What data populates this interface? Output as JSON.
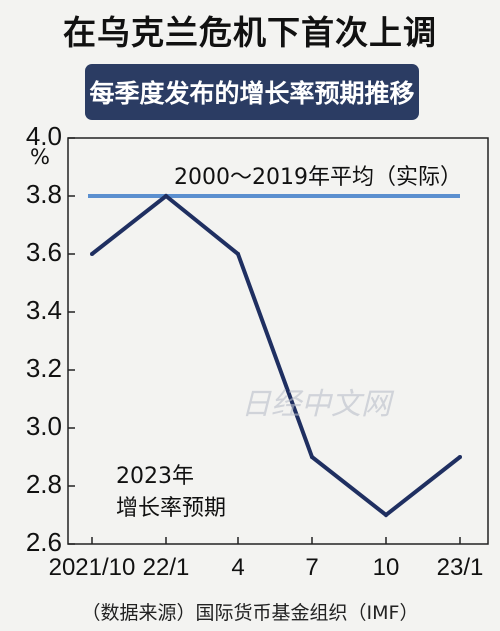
{
  "title": "在乌克兰危机下首次上调",
  "subtitle": "每季度发布的增长率预期推移",
  "source": "（数据来源）国际货币基金组织（IMF）",
  "watermark": "日经中文网",
  "colors": {
    "series": "#1f2f61",
    "reference": "#5b8fcf",
    "subtitle_bg": "#2b3c63"
  },
  "chart_data": {
    "type": "line",
    "categories": [
      "2021/10",
      "22/1",
      "4",
      "7",
      "10",
      "23/1"
    ],
    "series": [
      {
        "name": "2023年增长率预期",
        "values": [
          3.6,
          3.8,
          3.6,
          2.9,
          2.7,
          2.9
        ]
      }
    ],
    "reference_line": {
      "label": "2000～2019年平均（实际）",
      "value": 3.8
    },
    "y_unit": "%",
    "y_ticks": [
      "4.0",
      "3.8",
      "3.6",
      "3.4",
      "3.2",
      "3.0",
      "2.8",
      "2.6"
    ],
    "ylim": [
      2.6,
      4.0
    ],
    "series_annotation": [
      "2023年",
      "增长率预期"
    ],
    "grid": false
  }
}
